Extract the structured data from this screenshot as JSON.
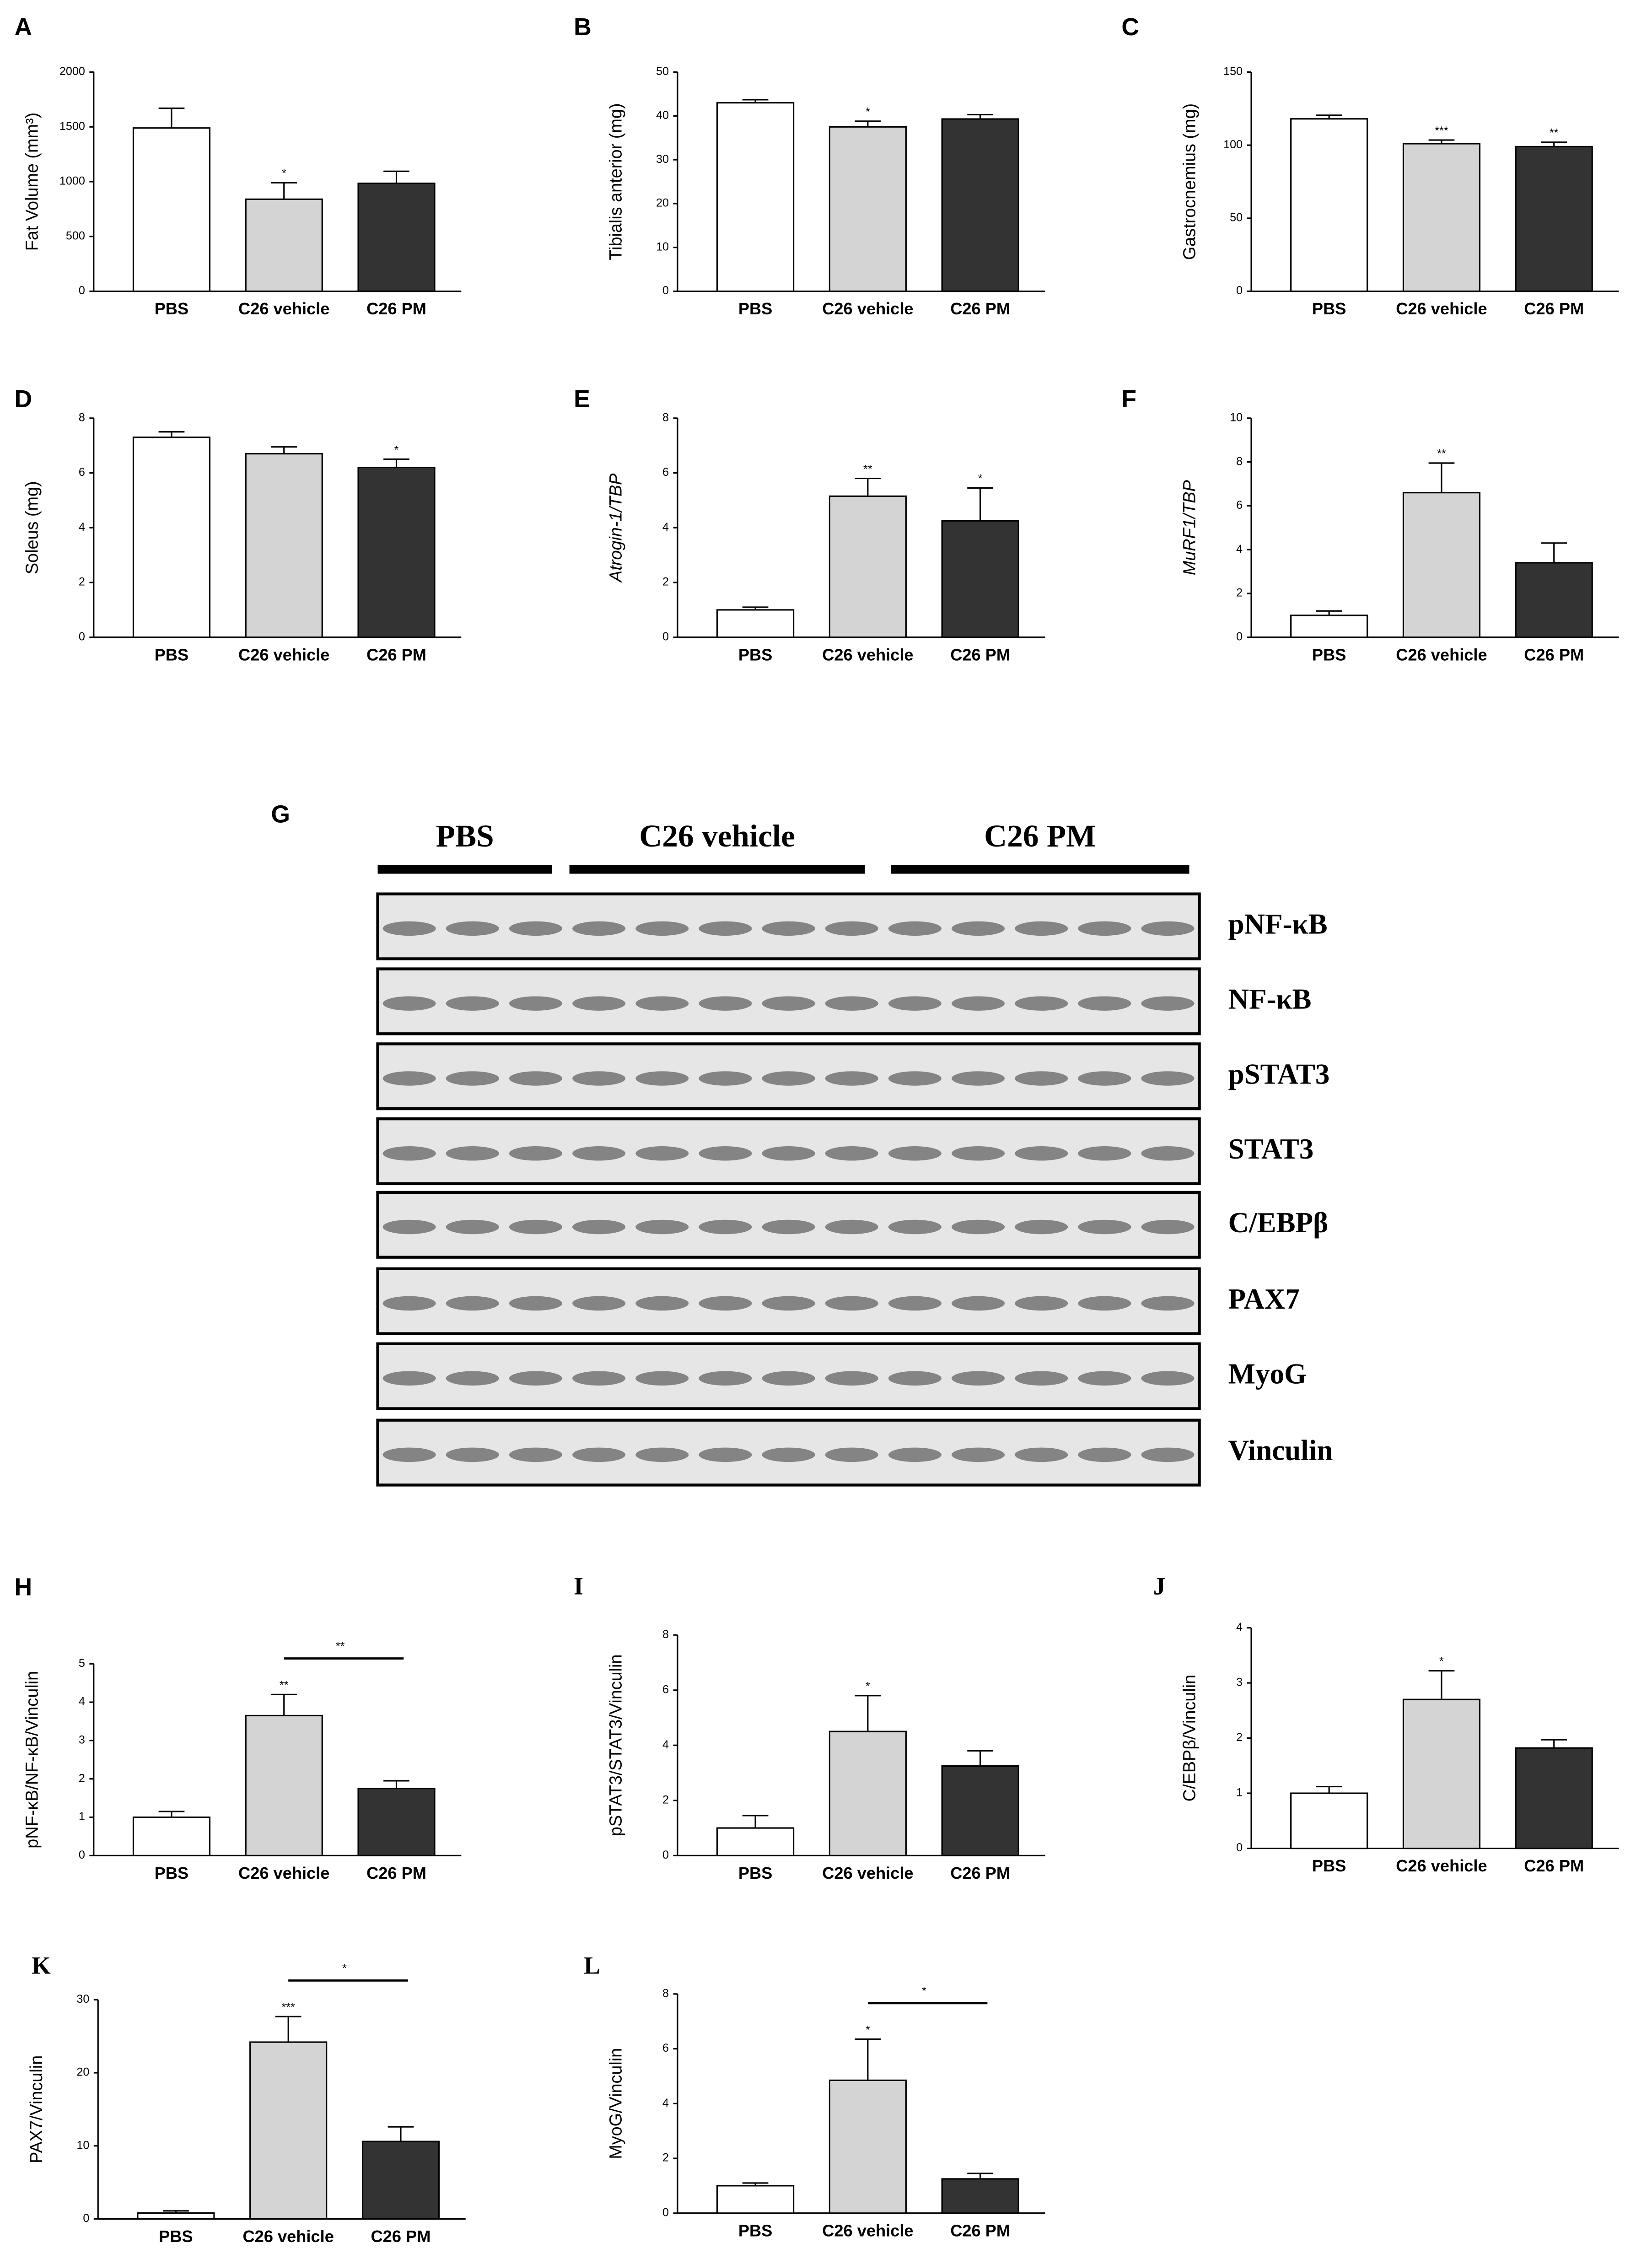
{
  "chart_data": [
    {
      "type": "bar",
      "panel": "A",
      "ylabel": "Fat Volume (mm³)",
      "categories": [
        "PBS",
        "C26 vehicle",
        "C26 PM"
      ],
      "values": [
        1490,
        840,
        985
      ],
      "errors": [
        180,
        150,
        110
      ],
      "stars": [
        null,
        "*",
        null
      ],
      "colors": [
        "#ffffff",
        "#d4d4d4",
        "#333333"
      ],
      "ylim": [
        0,
        2000
      ],
      "yticks": [
        0,
        500,
        1000,
        1500,
        2000
      ]
    },
    {
      "type": "bar",
      "panel": "B",
      "ylabel": "Tibialis anterior (mg)",
      "categories": [
        "PBS",
        "C26 vehicle",
        "C26 PM"
      ],
      "values": [
        43.0,
        37.5,
        39.3
      ],
      "errors": [
        0.7,
        1.3,
        1.0
      ],
      "stars": [
        null,
        "*",
        null
      ],
      "colors": [
        "#ffffff",
        "#d4d4d4",
        "#333333"
      ],
      "ylim": [
        0,
        50
      ],
      "yticks": [
        0,
        10,
        20,
        30,
        40,
        50
      ]
    },
    {
      "type": "bar",
      "panel": "C",
      "ylabel": "Gastrocnemius (mg)",
      "categories": [
        "PBS",
        "C26 vehicle",
        "C26 PM"
      ],
      "values": [
        118,
        101,
        99
      ],
      "errors": [
        2.5,
        2.5,
        3
      ],
      "stars": [
        null,
        "***",
        "**"
      ],
      "colors": [
        "#ffffff",
        "#d4d4d4",
        "#333333"
      ],
      "ylim": [
        0,
        150
      ],
      "yticks": [
        0,
        50,
        100,
        150
      ]
    },
    {
      "type": "bar",
      "panel": "D",
      "ylabel": "Soleus (mg)",
      "categories": [
        "PBS",
        "C26 vehicle",
        "C26 PM"
      ],
      "values": [
        7.3,
        6.7,
        6.2
      ],
      "errors": [
        0.2,
        0.25,
        0.3
      ],
      "stars": [
        null,
        null,
        "*"
      ],
      "colors": [
        "#ffffff",
        "#d4d4d4",
        "#333333"
      ],
      "ylim": [
        0,
        8
      ],
      "yticks": [
        0,
        2,
        4,
        6,
        8
      ]
    },
    {
      "type": "bar",
      "panel": "E",
      "ylabel": "Atrogin-1/TBP",
      "ylabel_style": "italic",
      "categories": [
        "PBS",
        "C26 vehicle",
        "C26 PM"
      ],
      "values": [
        1.0,
        5.15,
        4.25
      ],
      "errors": [
        0.1,
        0.65,
        1.2
      ],
      "stars": [
        null,
        "**",
        "*"
      ],
      "colors": [
        "#ffffff",
        "#d4d4d4",
        "#333333"
      ],
      "ylim": [
        0,
        8
      ],
      "yticks": [
        0,
        2,
        4,
        6,
        8
      ]
    },
    {
      "type": "bar",
      "panel": "F",
      "ylabel": "MuRF1/TBP",
      "ylabel_style": "italic",
      "categories": [
        "PBS",
        "C26 vehicle",
        "C26 PM"
      ],
      "values": [
        1.0,
        6.6,
        3.4
      ],
      "errors": [
        0.2,
        1.35,
        0.9
      ],
      "stars": [
        null,
        "**",
        null
      ],
      "colors": [
        "#ffffff",
        "#d4d4d4",
        "#333333"
      ],
      "ylim": [
        0,
        10
      ],
      "yticks": [
        0,
        2,
        4,
        6,
        8,
        10
      ]
    },
    {
      "type": "bar",
      "panel": "H",
      "ylabel": "pNF-κB/NF-κB/Vinculin",
      "categories": [
        "PBS",
        "C26 vehicle",
        "C26 PM"
      ],
      "values": [
        1.0,
        3.65,
        1.75
      ],
      "errors": [
        0.15,
        0.55,
        0.2
      ],
      "stars": [
        null,
        "**",
        null
      ],
      "bracket": "**",
      "colors": [
        "#ffffff",
        "#d4d4d4",
        "#333333"
      ],
      "ylim": [
        0,
        5
      ],
      "yticks": [
        0,
        1,
        2,
        3,
        4,
        5
      ]
    },
    {
      "type": "bar",
      "panel": "I",
      "ylabel": "pSTAT3/STAT3/Vinculin",
      "categories": [
        "PBS",
        "C26 vehicle",
        "C26 PM"
      ],
      "values": [
        1.0,
        4.5,
        3.25
      ],
      "errors": [
        0.45,
        1.3,
        0.55
      ],
      "stars": [
        null,
        "*",
        null
      ],
      "colors": [
        "#ffffff",
        "#d4d4d4",
        "#333333"
      ],
      "ylim": [
        0,
        8
      ],
      "yticks": [
        0,
        2,
        4,
        6,
        8
      ]
    },
    {
      "type": "bar",
      "panel": "J",
      "ylabel": "C/EBPβ/Vinculin",
      "categories": [
        "PBS",
        "C26 vehicle",
        "C26 PM"
      ],
      "values": [
        1.0,
        2.7,
        1.82
      ],
      "errors": [
        0.12,
        0.52,
        0.15
      ],
      "stars": [
        null,
        "*",
        null
      ],
      "colors": [
        "#ffffff",
        "#d4d4d4",
        "#333333"
      ],
      "ylim": [
        0,
        4
      ],
      "yticks": [
        0,
        1,
        2,
        3,
        4
      ]
    },
    {
      "type": "bar",
      "panel": "K",
      "ylabel": "PAX7/Vinculin",
      "categories": [
        "PBS",
        "C26 vehicle",
        "C26 PM"
      ],
      "values": [
        0.8,
        24.2,
        10.6
      ],
      "errors": [
        0.3,
        3.5,
        2.0
      ],
      "stars": [
        null,
        "***",
        null
      ],
      "bracket": "*",
      "colors": [
        "#ffffff",
        "#d4d4d4",
        "#333333"
      ],
      "ylim": [
        0,
        30
      ],
      "yticks": [
        0,
        10,
        20,
        30
      ]
    },
    {
      "type": "bar",
      "panel": "L",
      "ylabel": "MyoG/Vinculin",
      "categories": [
        "PBS",
        "C26 vehicle",
        "C26 PM"
      ],
      "values": [
        1.0,
        4.85,
        1.25
      ],
      "errors": [
        0.1,
        1.5,
        0.2
      ],
      "stars": [
        null,
        "*",
        null
      ],
      "bracket": "*",
      "colors": [
        "#ffffff",
        "#d4d4d4",
        "#333333"
      ],
      "ylim": [
        0,
        8
      ],
      "yticks": [
        0,
        2,
        4,
        6,
        8
      ]
    }
  ],
  "blot": {
    "panel": "G",
    "groups": [
      "PBS",
      "C26 vehicle",
      "C26 PM"
    ],
    "proteins": [
      "pNF-κB",
      "NF-κB",
      "pSTAT3",
      "STAT3",
      "C/EBPβ",
      "PAX7",
      "MyoG",
      "Vinculin"
    ]
  }
}
